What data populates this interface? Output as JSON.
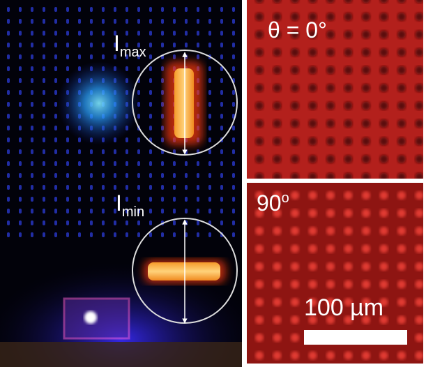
{
  "left_panel": {
    "max_label": {
      "symbol": "I",
      "subscript": "max"
    },
    "min_label": {
      "symbol": "I",
      "subscript": "min"
    }
  },
  "top_right_panel": {
    "angle_label": "θ = 0°"
  },
  "bottom_right_panel": {
    "angle_label": {
      "number": "90",
      "superscript": "o"
    },
    "scale_bar_label": "100 µm"
  }
}
